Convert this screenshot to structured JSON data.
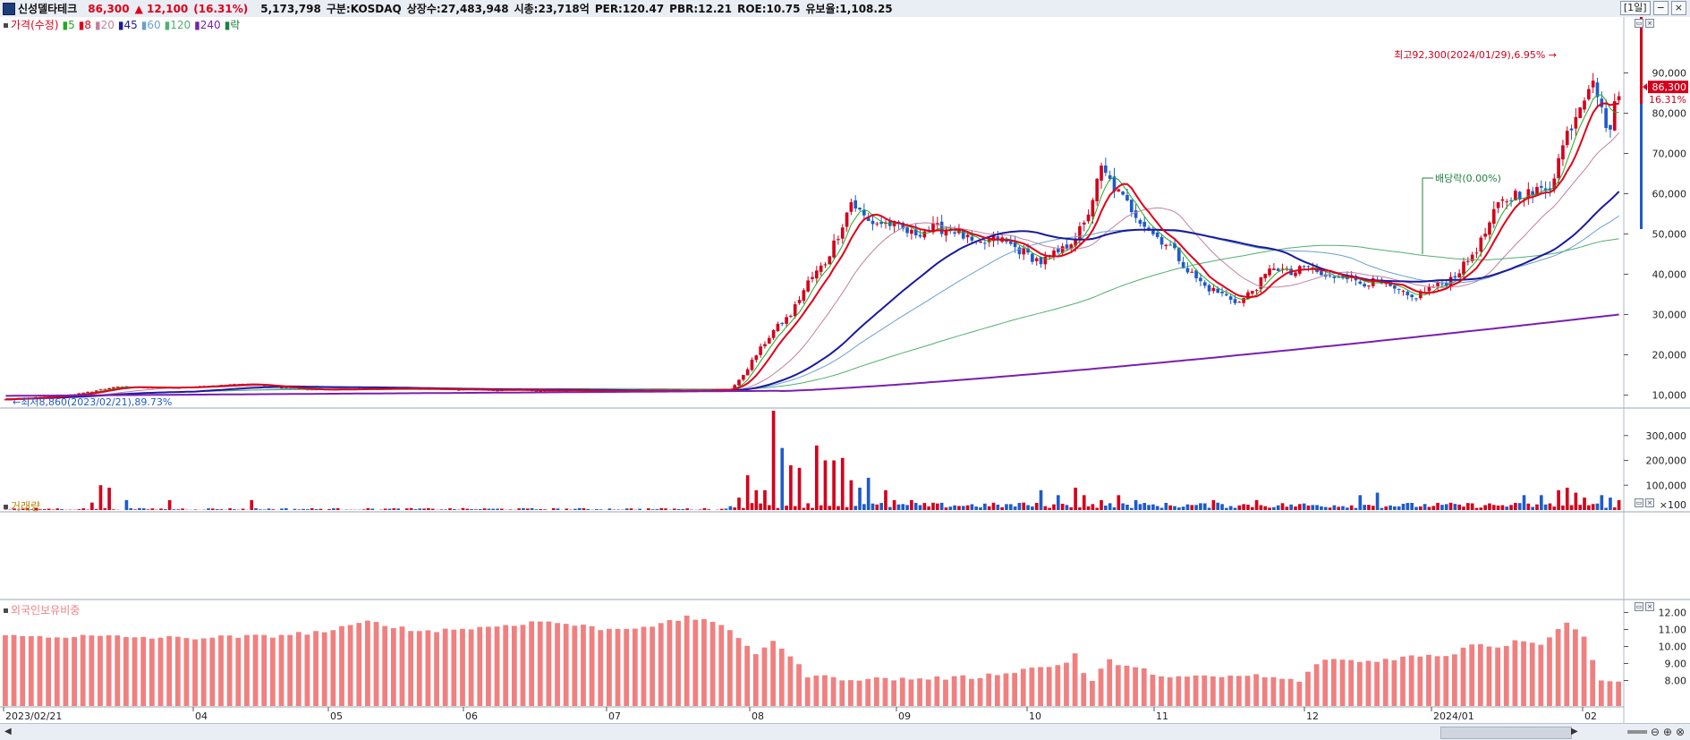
{
  "header": {
    "name": "신성델타테크",
    "price": "86,300",
    "change": "▲ 12,100",
    "change_pct": "(16.31%)",
    "volume": "5,173,798",
    "market": "구분:KOSDAQ",
    "listed": "상장수:27,483,948",
    "cap": "시총:23,718억",
    "per": "PER:120.47",
    "pbr": "PBR:12.21",
    "roe": "ROE:10.75",
    "float": "유보율:1,108.25",
    "period_button": "[1일]"
  },
  "legends": {
    "price": [
      {
        "text": "가격(수정)",
        "color": "#e0001a"
      },
      {
        "text": "5",
        "color": "#22aa22"
      },
      {
        "text": "8",
        "color": "#e0001a"
      },
      {
        "text": "20",
        "color": "#c080a0"
      },
      {
        "text": "45",
        "color": "#1a1aa0"
      },
      {
        "text": "60",
        "color": "#6aa0d0"
      },
      {
        "text": "120",
        "color": "#50b070"
      },
      {
        "text": "240",
        "color": "#7a20b0"
      },
      {
        "text": "락",
        "color": "#208040"
      }
    ],
    "volume": "거래량",
    "foreign": "외국인보유비중"
  },
  "chart_data": [
    {
      "type": "candlestick",
      "title": "가격(수정)",
      "ylim": [
        7000,
        99000
      ],
      "yticks": [
        10000,
        20000,
        30000,
        40000,
        50000,
        60000,
        70000,
        80000,
        90000
      ],
      "ytick_labels": [
        "10,000",
        "20,000",
        "30,000",
        "40,000",
        "50,000",
        "60,000",
        "70,000",
        "80,000",
        "90,000"
      ],
      "last_price_label": "86,300",
      "last_pct_label": "16.31%",
      "high_annotation": "최고92,300(2024/01/29),6.95%",
      "low_annotation": "최저8,860(2023/02/21),89.73%",
      "dividend_annotation": "배당락(0.00%)",
      "ma_legend": [
        "5",
        "8",
        "20",
        "45",
        "60",
        "120",
        "240"
      ]
    },
    {
      "type": "bar",
      "title": "거래량",
      "ylim": [
        0,
        400000
      ],
      "yticks": [
        100000,
        200000,
        300000
      ],
      "ytick_labels": [
        "100,000",
        "200,000",
        "300,000"
      ],
      "unit_label": "×100",
      "up_color": "#d4001c",
      "down_color": "#1f5bc8"
    },
    {
      "type": "bar",
      "title": "외국인보유비중",
      "ylim": [
        6.5,
        12.5
      ],
      "yticks": [
        8,
        9,
        10,
        11,
        12
      ],
      "ytick_labels": [
        "8.00",
        "9.00",
        "10.00",
        "11.00",
        "12.00"
      ],
      "color": "#f08080"
    }
  ],
  "xaxis": {
    "labels": [
      "2023/02/21",
      "04",
      "05",
      "06",
      "07",
      "08",
      "09",
      "10",
      "11",
      "12",
      "2024/01",
      "02"
    ]
  },
  "anchors": {
    "price": [
      [
        0,
        8900
      ],
      [
        10,
        9600
      ],
      [
        18,
        10500
      ],
      [
        25,
        12000
      ],
      [
        40,
        11800
      ],
      [
        55,
        12800
      ],
      [
        70,
        11300
      ],
      [
        90,
        11600
      ],
      [
        110,
        11300
      ],
      [
        130,
        11100
      ],
      [
        150,
        11100
      ],
      [
        160,
        11200
      ],
      [
        165,
        11400
      ],
      [
        168,
        11500
      ],
      [
        170,
        13500
      ],
      [
        174,
        20000
      ],
      [
        178,
        26000
      ],
      [
        182,
        30000
      ],
      [
        186,
        38000
      ],
      [
        190,
        43000
      ],
      [
        193,
        50000
      ],
      [
        196,
        58000
      ],
      [
        200,
        53000
      ],
      [
        205,
        52500
      ],
      [
        210,
        50000
      ],
      [
        215,
        51500
      ],
      [
        220,
        51000
      ],
      [
        225,
        47000
      ],
      [
        230,
        49000
      ],
      [
        235,
        46000
      ],
      [
        240,
        43000
      ],
      [
        245,
        46000
      ],
      [
        250,
        52000
      ],
      [
        254,
        66000
      ],
      [
        258,
        60000
      ],
      [
        262,
        55000
      ],
      [
        266,
        50000
      ],
      [
        270,
        47000
      ],
      [
        274,
        41000
      ],
      [
        278,
        37000
      ],
      [
        282,
        35000
      ],
      [
        286,
        33000
      ],
      [
        290,
        37000
      ],
      [
        294,
        42000
      ],
      [
        298,
        40000
      ],
      [
        302,
        42000
      ],
      [
        306,
        39000
      ],
      [
        310,
        40000
      ],
      [
        314,
        38000
      ],
      [
        318,
        38000
      ],
      [
        322,
        36000
      ],
      [
        326,
        34000
      ],
      [
        330,
        36500
      ],
      [
        334,
        38000
      ],
      [
        338,
        42000
      ],
      [
        342,
        48000
      ],
      [
        346,
        57000
      ],
      [
        350,
        60000
      ],
      [
        354,
        60000
      ],
      [
        358,
        62000
      ],
      [
        362,
        75000
      ],
      [
        366,
        85000
      ],
      [
        368,
        90000
      ],
      [
        370,
        80000
      ],
      [
        372,
        76000
      ],
      [
        374,
        86300
      ]
    ],
    "foreign": [
      [
        0,
        10.6
      ],
      [
        20,
        10.6
      ],
      [
        40,
        10.5
      ],
      [
        60,
        10.6
      ],
      [
        75,
        10.9
      ],
      [
        85,
        11.5
      ],
      [
        95,
        10.9
      ],
      [
        110,
        11.1
      ],
      [
        125,
        11.5
      ],
      [
        140,
        11.0
      ],
      [
        152,
        11.3
      ],
      [
        158,
        11.7
      ],
      [
        165,
        11.5
      ],
      [
        170,
        10.4
      ],
      [
        174,
        9.6
      ],
      [
        178,
        10.4
      ],
      [
        182,
        9.4
      ],
      [
        186,
        8.3
      ],
      [
        195,
        8.1
      ],
      [
        210,
        8.1
      ],
      [
        225,
        8.2
      ],
      [
        235,
        8.6
      ],
      [
        240,
        8.8
      ],
      [
        245,
        8.9
      ],
      [
        248,
        9.6
      ],
      [
        250,
        8.4
      ],
      [
        252,
        8.0
      ],
      [
        256,
        9.2
      ],
      [
        260,
        8.8
      ],
      [
        264,
        8.6
      ],
      [
        270,
        8.2
      ],
      [
        280,
        8.2
      ],
      [
        290,
        8.3
      ],
      [
        295,
        8.1
      ],
      [
        300,
        8.0
      ],
      [
        306,
        9.3
      ],
      [
        315,
        9.1
      ],
      [
        325,
        9.4
      ],
      [
        335,
        9.5
      ],
      [
        340,
        10.2
      ],
      [
        346,
        10.0
      ],
      [
        352,
        10.4
      ],
      [
        356,
        10.2
      ],
      [
        360,
        11.0
      ],
      [
        362,
        11.5
      ],
      [
        366,
        10.5
      ],
      [
        368,
        9.2
      ],
      [
        370,
        8.1
      ],
      [
        374,
        8.0
      ]
    ],
    "volume_spikes": [
      [
        20,
        30000
      ],
      [
        22,
        100000
      ],
      [
        24,
        90000
      ],
      [
        28,
        40000
      ],
      [
        38,
        40000
      ],
      [
        57,
        40000
      ],
      [
        170,
        50000
      ],
      [
        172,
        140000
      ],
      [
        174,
        80000
      ],
      [
        176,
        80000
      ],
      [
        178,
        400000
      ],
      [
        180,
        250000
      ],
      [
        182,
        180000
      ],
      [
        184,
        170000
      ],
      [
        188,
        260000
      ],
      [
        190,
        200000
      ],
      [
        192,
        200000
      ],
      [
        194,
        210000
      ],
      [
        196,
        120000
      ],
      [
        198,
        90000
      ],
      [
        200,
        130000
      ],
      [
        204,
        80000
      ],
      [
        206,
        40000
      ],
      [
        210,
        40000
      ],
      [
        236,
        30000
      ],
      [
        240,
        80000
      ],
      [
        244,
        60000
      ],
      [
        248,
        90000
      ],
      [
        250,
        60000
      ],
      [
        254,
        40000
      ],
      [
        258,
        60000
      ],
      [
        262,
        40000
      ],
      [
        280,
        40000
      ],
      [
        290,
        40000
      ],
      [
        314,
        60000
      ],
      [
        318,
        70000
      ],
      [
        352,
        60000
      ],
      [
        356,
        60000
      ],
      [
        360,
        80000
      ],
      [
        362,
        90000
      ],
      [
        364,
        70000
      ],
      [
        366,
        50000
      ],
      [
        370,
        60000
      ],
      [
        372,
        50000
      ],
      [
        374,
        40000
      ]
    ]
  }
}
